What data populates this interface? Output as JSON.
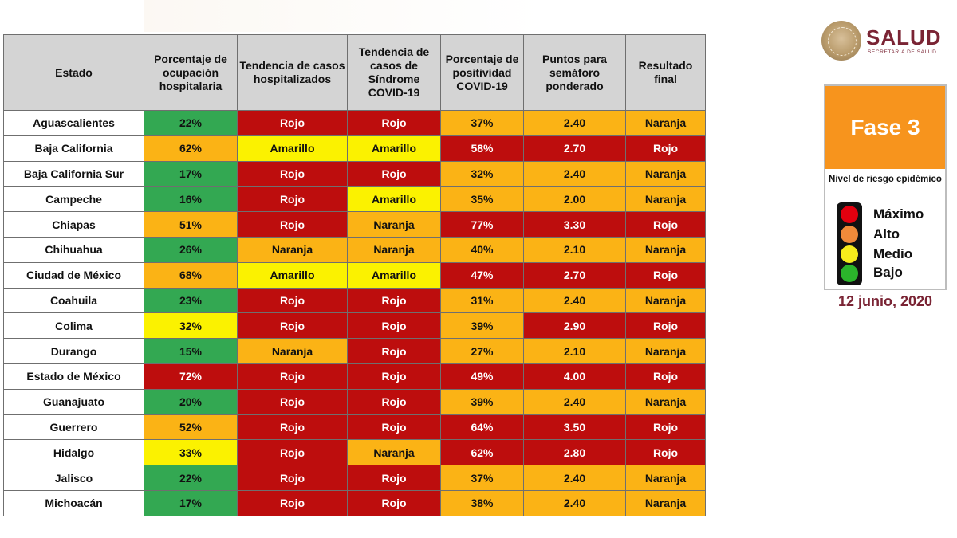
{
  "headers": [
    "Estado",
    "Porcentaje de ocupación hospitalaria",
    "Tendencia de casos hospitalizados",
    "Tendencia de casos de Síndrome COVID-19",
    "Porcentaje de positividad COVID-19",
    "Puntos para semáforo ponderado",
    "Resultado final"
  ],
  "colors": {
    "green": "#33a852",
    "yellow": "#fbf200",
    "orange": "#fbb315",
    "red": "#bd0d0d"
  },
  "rows": [
    {
      "estado": "Aguascalientes",
      "ocupacion": "22%",
      "oc_color": "green",
      "hosp": "Rojo",
      "hosp_color": "red",
      "sind": "Rojo",
      "sind_color": "red",
      "posit": "37%",
      "pos_color": "orange",
      "puntos": "2.40",
      "pts_color": "orange",
      "resultado": "Naranja",
      "res_color": "orange"
    },
    {
      "estado": "Baja California",
      "ocupacion": "62%",
      "oc_color": "orange",
      "hosp": "Amarillo",
      "hosp_color": "yellow",
      "sind": "Amarillo",
      "sind_color": "yellow",
      "posit": "58%",
      "pos_color": "red",
      "puntos": "2.70",
      "pts_color": "red",
      "resultado": "Rojo",
      "res_color": "red"
    },
    {
      "estado": "Baja California Sur",
      "ocupacion": "17%",
      "oc_color": "green",
      "hosp": "Rojo",
      "hosp_color": "red",
      "sind": "Rojo",
      "sind_color": "red",
      "posit": "32%",
      "pos_color": "orange",
      "puntos": "2.40",
      "pts_color": "orange",
      "resultado": "Naranja",
      "res_color": "orange"
    },
    {
      "estado": "Campeche",
      "ocupacion": "16%",
      "oc_color": "green",
      "hosp": "Rojo",
      "hosp_color": "red",
      "sind": "Amarillo",
      "sind_color": "yellow",
      "posit": "35%",
      "pos_color": "orange",
      "puntos": "2.00",
      "pts_color": "orange",
      "resultado": "Naranja",
      "res_color": "orange"
    },
    {
      "estado": "Chiapas",
      "ocupacion": "51%",
      "oc_color": "orange",
      "hosp": "Rojo",
      "hosp_color": "red",
      "sind": "Naranja",
      "sind_color": "orange",
      "posit": "77%",
      "pos_color": "red",
      "puntos": "3.30",
      "pts_color": "red",
      "resultado": "Rojo",
      "res_color": "red"
    },
    {
      "estado": "Chihuahua",
      "ocupacion": "26%",
      "oc_color": "green",
      "hosp": "Naranja",
      "hosp_color": "orange",
      "sind": "Naranja",
      "sind_color": "orange",
      "posit": "40%",
      "pos_color": "orange",
      "puntos": "2.10",
      "pts_color": "orange",
      "resultado": "Naranja",
      "res_color": "orange"
    },
    {
      "estado": "Ciudad de México",
      "ocupacion": "68%",
      "oc_color": "orange",
      "hosp": "Amarillo",
      "hosp_color": "yellow",
      "sind": "Amarillo",
      "sind_color": "yellow",
      "posit": "47%",
      "pos_color": "red",
      "puntos": "2.70",
      "pts_color": "red",
      "resultado": "Rojo",
      "res_color": "red"
    },
    {
      "estado": "Coahuila",
      "ocupacion": "23%",
      "oc_color": "green",
      "hosp": "Rojo",
      "hosp_color": "red",
      "sind": "Rojo",
      "sind_color": "red",
      "posit": "31%",
      "pos_color": "orange",
      "puntos": "2.40",
      "pts_color": "orange",
      "resultado": "Naranja",
      "res_color": "orange"
    },
    {
      "estado": "Colima",
      "ocupacion": "32%",
      "oc_color": "yellow",
      "hosp": "Rojo",
      "hosp_color": "red",
      "sind": "Rojo",
      "sind_color": "red",
      "posit": "39%",
      "pos_color": "orange",
      "puntos": "2.90",
      "pts_color": "red",
      "resultado": "Rojo",
      "res_color": "red"
    },
    {
      "estado": "Durango",
      "ocupacion": "15%",
      "oc_color": "green",
      "hosp": "Naranja",
      "hosp_color": "orange",
      "sind": "Rojo",
      "sind_color": "red",
      "posit": "27%",
      "pos_color": "orange",
      "puntos": "2.10",
      "pts_color": "orange",
      "resultado": "Naranja",
      "res_color": "orange"
    },
    {
      "estado": "Estado de México",
      "ocupacion": "72%",
      "oc_color": "red",
      "hosp": "Rojo",
      "hosp_color": "red",
      "sind": "Rojo",
      "sind_color": "red",
      "posit": "49%",
      "pos_color": "red",
      "puntos": "4.00",
      "pts_color": "red",
      "resultado": "Rojo",
      "res_color": "red"
    },
    {
      "estado": "Guanajuato",
      "ocupacion": "20%",
      "oc_color": "green",
      "hosp": "Rojo",
      "hosp_color": "red",
      "sind": "Rojo",
      "sind_color": "red",
      "posit": "39%",
      "pos_color": "orange",
      "puntos": "2.40",
      "pts_color": "orange",
      "resultado": "Naranja",
      "res_color": "orange"
    },
    {
      "estado": "Guerrero",
      "ocupacion": "52%",
      "oc_color": "orange",
      "hosp": "Rojo",
      "hosp_color": "red",
      "sind": "Rojo",
      "sind_color": "red",
      "posit": "64%",
      "pos_color": "red",
      "puntos": "3.50",
      "pts_color": "red",
      "resultado": "Rojo",
      "res_color": "red"
    },
    {
      "estado": "Hidalgo",
      "ocupacion": "33%",
      "oc_color": "yellow",
      "hosp": "Rojo",
      "hosp_color": "red",
      "sind": "Naranja",
      "sind_color": "orange",
      "posit": "62%",
      "pos_color": "red",
      "puntos": "2.80",
      "pts_color": "red",
      "resultado": "Rojo",
      "res_color": "red"
    },
    {
      "estado": "Jalisco",
      "ocupacion": "22%",
      "oc_color": "green",
      "hosp": "Rojo",
      "hosp_color": "red",
      "sind": "Rojo",
      "sind_color": "red",
      "posit": "37%",
      "pos_color": "orange",
      "puntos": "2.40",
      "pts_color": "orange",
      "resultado": "Naranja",
      "res_color": "orange"
    },
    {
      "estado": "Michoacán",
      "ocupacion": "17%",
      "oc_color": "green",
      "hosp": "Rojo",
      "hosp_color": "red",
      "sind": "Rojo",
      "sind_color": "red",
      "posit": "38%",
      "pos_color": "orange",
      "puntos": "2.40",
      "pts_color": "orange",
      "resultado": "Naranja",
      "res_color": "orange"
    }
  ],
  "panel": {
    "logo_name": "SALUD",
    "logo_sub": "SECRETARÍA DE SALUD",
    "phase": "Fase 3",
    "risk_title": "Nivel de riesgo epidémico",
    "legend": [
      {
        "label": "Máximo",
        "color": "#e3000f"
      },
      {
        "label": "Alto",
        "color": "#f08a3a"
      },
      {
        "label": "Medio",
        "color": "#f6ec1c"
      },
      {
        "label": "Bajo",
        "color": "#2bb52b"
      }
    ],
    "date": "12 junio, 2020"
  }
}
